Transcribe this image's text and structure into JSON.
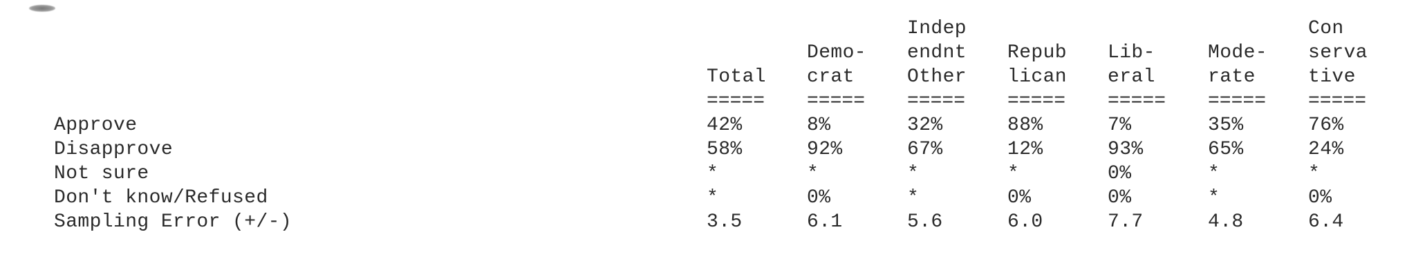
{
  "columns": [
    {
      "lines": [
        "",
        "",
        "Total"
      ]
    },
    {
      "lines": [
        "",
        "Demo-",
        "crat"
      ]
    },
    {
      "lines": [
        "Indep",
        "endnt",
        "Other"
      ]
    },
    {
      "lines": [
        "",
        "Repub",
        "lican"
      ]
    },
    {
      "lines": [
        "",
        "Lib-",
        "eral"
      ]
    },
    {
      "lines": [
        "",
        "Mode-",
        "rate"
      ]
    },
    {
      "lines": [
        "Con",
        "serva",
        "tive"
      ]
    }
  ],
  "rule": "=====",
  "rows": [
    {
      "label": "Approve",
      "values": [
        "42%",
        "8%",
        "32%",
        "88%",
        "7%",
        "35%",
        "76%"
      ]
    },
    {
      "label": "Disapprove",
      "values": [
        "58%",
        "92%",
        "67%",
        "12%",
        "93%",
        "65%",
        "24%"
      ]
    },
    {
      "label": "Not sure",
      "values": [
        "*",
        "*",
        "*",
        "*",
        "0%",
        "*",
        "*"
      ]
    },
    {
      "label": "Don't know/Refused",
      "values": [
        "*",
        "0%",
        "*",
        "0%",
        "0%",
        "*",
        "0%"
      ]
    },
    {
      "label": "Sampling Error (+/-)",
      "values": [
        "3.5",
        "6.1",
        "5.6",
        "6.0",
        "7.7",
        "4.8",
        "6.4"
      ]
    }
  ]
}
